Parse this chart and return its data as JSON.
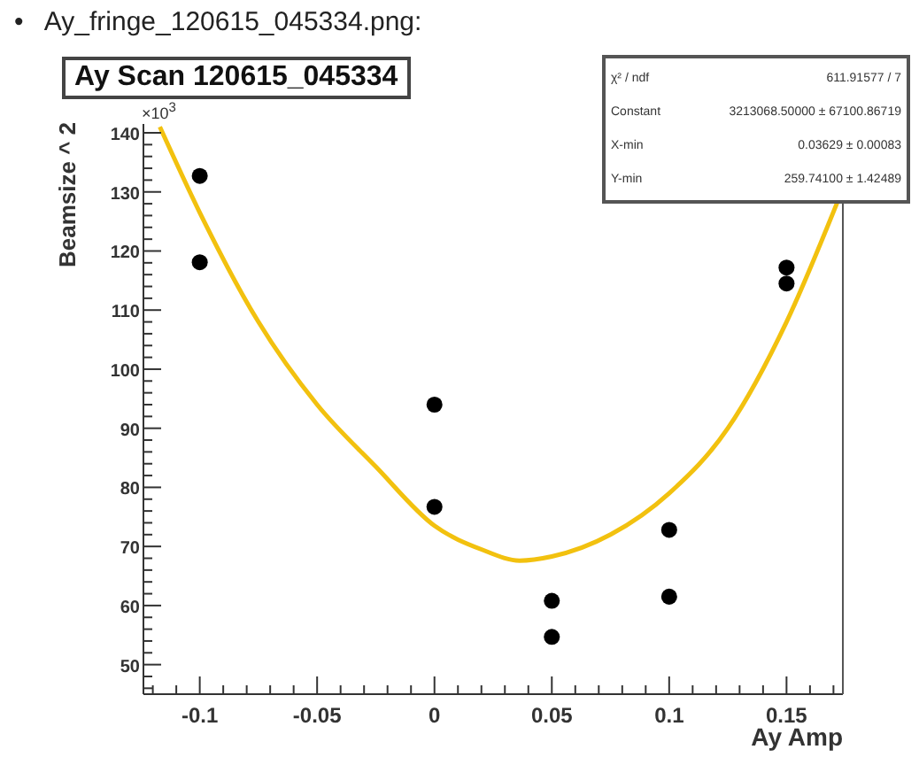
{
  "chart_data": {
    "type": "scatter",
    "title": "Ay Scan 120615_045334",
    "xlabel": "Ay Amp",
    "ylabel": "Beamsize ^ 2",
    "annotations": [
      "•   Ay_fringe_120615_045334.png:",
      "×10$^{3}$",
      "χ² / ndf",
      "611.91577 / 7",
      "Constant",
      "3213068.50000 ± 67100.86719",
      "X-min",
      "0.03629 ± 0.00083",
      "Y-min",
      "259.74100 ± 1.42489"
    ],
    "series": [
      {
        "marker": "circle",
        "color": "#000000",
        "x": [
          -0.1,
          -0.1,
          0,
          0,
          0.05,
          0.05,
          0.1,
          0.1,
          0.15,
          0.15
        ],
        "values": [
          132.7,
          118.1,
          94.0,
          76.7,
          60.8,
          54.7,
          72.8,
          61.5,
          117.2,
          114.5
        ]
      },
      {
        "type": "line",
        "color": "#f2c10f",
        "x": [
          -0.117,
          -0.1,
          -0.075,
          -0.05,
          -0.025,
          0,
          0.02,
          0.0363,
          0.05,
          0.075,
          0.1,
          0.125,
          0.15,
          0.172
        ],
        "values": [
          141,
          126.5,
          108,
          94,
          83.5,
          73.5,
          69.5,
          67.6,
          68.3,
          72,
          79,
          90,
          108,
          128.6
        ]
      }
    ],
    "grid": false,
    "xlim": [
      -0.124,
      0.174
    ],
    "xticks": [
      {
        "value": -0.12,
        "label": null
      },
      {
        "value": -0.11,
        "label": null
      },
      -0.1,
      {
        "value": -0.09,
        "label": null
      },
      {
        "value": -0.08,
        "label": null
      },
      {
        "value": -0.07,
        "label": null
      },
      {
        "value": -0.06,
        "label": null
      },
      -0.05,
      {
        "value": -0.04,
        "label": null
      },
      {
        "value": -0.03,
        "label": null
      },
      {
        "value": -0.02,
        "label": null
      },
      {
        "value": -0.01,
        "label": null
      },
      0,
      {
        "value": 0.01,
        "label": null
      },
      {
        "value": 0.02,
        "label": null
      },
      {
        "value": 0.03,
        "label": null
      },
      {
        "value": 0.04,
        "label": null
      },
      0.05,
      {
        "value": 0.06,
        "label": null
      },
      {
        "value": 0.07,
        "label": null
      },
      {
        "value": 0.08,
        "label": null
      },
      {
        "value": 0.09,
        "label": null
      },
      0.1,
      {
        "value": 0.11,
        "label": null
      },
      {
        "value": 0.12,
        "label": null
      },
      {
        "value": 0.13,
        "label": null
      },
      {
        "value": 0.14,
        "label": null
      },
      0.15,
      {
        "value": 0.16,
        "label": null
      },
      {
        "value": 0.17,
        "label": null
      }
    ],
    "ylim": [
      45,
      141.5
    ],
    "yticks": [
      {
        "value": 46,
        "label": null
      },
      {
        "value": 48,
        "label": null
      },
      50,
      {
        "value": 52,
        "label": null
      },
      {
        "value": 54,
        "label": null
      },
      {
        "value": 56,
        "label": null
      },
      {
        "value": 58,
        "label": null
      },
      60,
      {
        "value": 62,
        "label": null
      },
      {
        "value": 64,
        "label": null
      },
      {
        "value": 66,
        "label": null
      },
      {
        "value": 68,
        "label": null
      },
      70,
      {
        "value": 72,
        "label": null
      },
      {
        "value": 74,
        "label": null
      },
      {
        "value": 76,
        "label": null
      },
      {
        "value": 78,
        "label": null
      },
      80,
      {
        "value": 82,
        "label": null
      },
      {
        "value": 84,
        "label": null
      },
      {
        "value": 86,
        "label": null
      },
      {
        "value": 88,
        "label": null
      },
      90,
      {
        "value": 92,
        "label": null
      },
      {
        "value": 94,
        "label": null
      },
      {
        "value": 96,
        "label": null
      },
      {
        "value": 98,
        "label": null
      },
      100,
      {
        "value": 102,
        "label": null
      },
      {
        "value": 104,
        "label": null
      },
      {
        "value": 106,
        "label": null
      },
      {
        "value": 108,
        "label": null
      },
      110,
      {
        "value": 112,
        "label": null
      },
      {
        "value": 114,
        "label": null
      },
      {
        "value": 116,
        "label": null
      },
      {
        "value": 118,
        "label": null
      },
      120,
      {
        "value": 122,
        "label": null
      },
      {
        "value": 124,
        "label": null
      },
      {
        "value": 126,
        "label": null
      },
      {
        "value": 128,
        "label": null
      },
      130,
      {
        "value": 132,
        "label": null
      },
      {
        "value": 134,
        "label": null
      },
      {
        "value": 136,
        "label": null
      },
      {
        "value": 138,
        "label": null
      },
      140
    ]
  }
}
